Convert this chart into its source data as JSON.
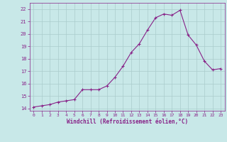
{
  "x": [
    0,
    1,
    2,
    3,
    4,
    5,
    6,
    7,
    8,
    9,
    10,
    11,
    12,
    13,
    14,
    15,
    16,
    17,
    18,
    19,
    20,
    21,
    22,
    23
  ],
  "y": [
    14.1,
    14.2,
    14.3,
    14.5,
    14.6,
    14.7,
    15.5,
    15.5,
    15.5,
    15.8,
    16.5,
    17.4,
    18.5,
    19.2,
    20.3,
    21.3,
    21.6,
    21.5,
    21.9,
    19.9,
    19.1,
    17.8,
    17.1,
    17.2
  ],
  "line_color": "#882288",
  "marker": "+",
  "bg_color": "#c8e8e8",
  "grid_color": "#aacccc",
  "xlabel": "Windchill (Refroidissement éolien,°C)",
  "xlabel_color": "#882288",
  "tick_color": "#882288",
  "ylim": [
    13.8,
    22.5
  ],
  "xlim": [
    -0.5,
    23.5
  ],
  "yticks": [
    14,
    15,
    16,
    17,
    18,
    19,
    20,
    21,
    22
  ],
  "xticks": [
    0,
    1,
    2,
    3,
    4,
    5,
    6,
    7,
    8,
    9,
    10,
    11,
    12,
    13,
    14,
    15,
    16,
    17,
    18,
    19,
    20,
    21,
    22,
    23
  ]
}
